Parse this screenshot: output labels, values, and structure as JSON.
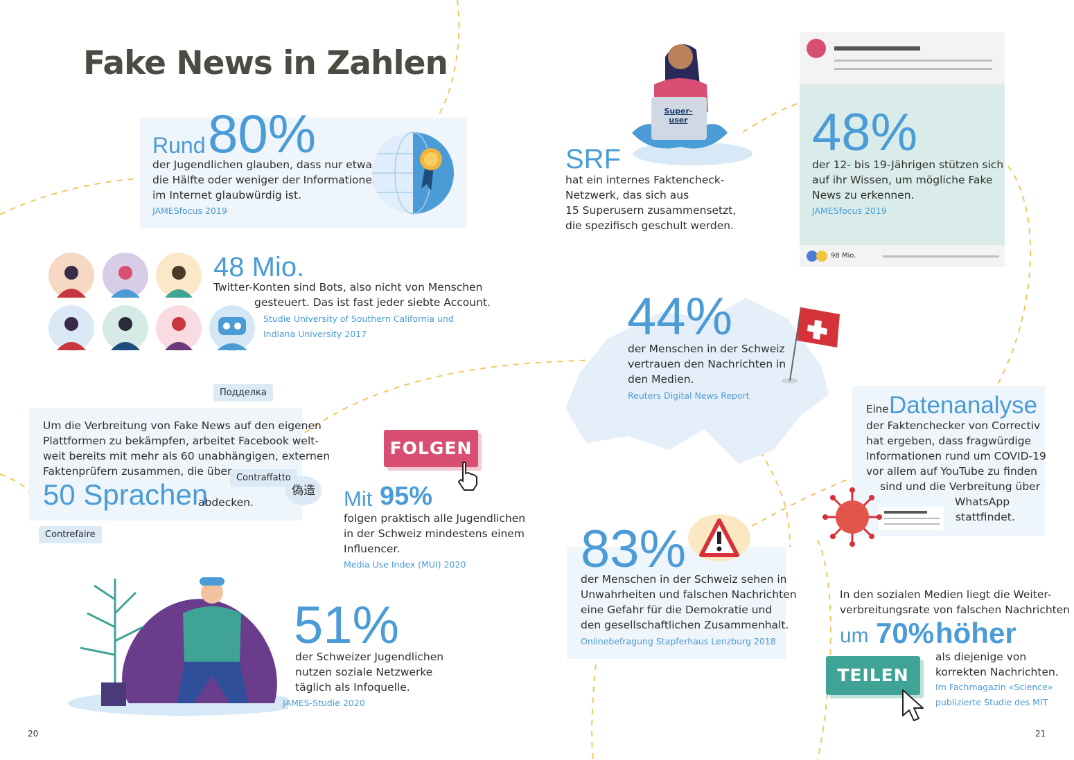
{
  "title": "Fake News in Zahlen",
  "page_left": "20",
  "page_right": "21",
  "colors": {
    "accent_blue": "#4a9bd6",
    "box_blue": "#eef5fb",
    "mint": "#d9ece9",
    "pink": "#d94f73",
    "teal": "#3fa496",
    "dash": "#f0c75a"
  },
  "s80": {
    "prefix": "Rund",
    "value": "80%",
    "text": [
      "der Jugendlichen glauben, dass nur etwa",
      "die Hälfte oder weniger der Informationen",
      "im Internet glaubwürdig ist."
    ],
    "source": "JAMESfocus 2019"
  },
  "bots": {
    "value": "48 Mio.",
    "text": [
      "Twitter-Konten sind Bots, also nicht von Menschen",
      "gesteuert. Das ist fast jeder siebte Account."
    ],
    "source": [
      "Studie University of Southern California und",
      "Indiana University 2017"
    ]
  },
  "facebook": {
    "text": [
      "Um die Verbreitung von Fake News auf den eigenen",
      "Plattformen zu bekämpfen, arbeitet Facebook welt-",
      "weit bereits mit mehr als 60 unabhängigen, externen",
      "Faktenprüfern zusammen, die über"
    ],
    "value": "50 Sprachen",
    "suffix": "abdecken.",
    "labels": [
      "Подделка",
      "Contraffatto",
      "偽造",
      "Contrefaire"
    ]
  },
  "s95": {
    "button": "FOLGEN",
    "prefix": "Mit",
    "value": "95%",
    "text": [
      "folgen praktisch alle Jugendlichen",
      "in der Schweiz mindestens einem",
      "Influencer."
    ],
    "source": "Media Use Index (MUI) 2020"
  },
  "s51": {
    "value": "51%",
    "text": [
      "der Schweizer Jugendlichen",
      "nutzen soziale Netzwerke",
      "täglich als Infoquelle."
    ],
    "source": "JAMES-Studie 2020"
  },
  "srf": {
    "laptop_label": [
      "Super-",
      "user"
    ],
    "value": "SRF",
    "text": [
      "hat ein internes Faktencheck-",
      "Netzwerk, das sich aus",
      "15 Superusern zusammensetzt,",
      "die spezifisch geschult werden."
    ]
  },
  "s48p": {
    "value": "48%",
    "text": [
      "der 12- bis 19-Jährigen stützen sich",
      "auf ihr Wissen, um mögliche Fake",
      "News zu erkennen."
    ],
    "source": "JAMESfocus 2019",
    "reactions": "98 Mio."
  },
  "s44": {
    "value": "44%",
    "text": [
      "der Menschen in der Schweiz",
      "vertrauen den Nachrichten in",
      "den Medien."
    ],
    "source": "Reuters Digital News Report"
  },
  "data": {
    "prefix": "Eine",
    "value": "Datenanalyse",
    "text": [
      "der Faktenchecker von Correctiv",
      "hat ergeben, dass fragwürdige",
      "Informationen rund um COVID-19",
      "vor allem auf YouTube zu finden",
      "sind und die Verbreitung über",
      "WhatsApp",
      "stattfindet."
    ]
  },
  "s83": {
    "value": "83%",
    "text": [
      "der Menschen in der Schweiz sehen in",
      "Unwahrheiten und falschen Nachrichten",
      "eine Gefahr für die Demokratie und",
      "den gesellschaftlichen Zusammenhalt."
    ],
    "source": "Onlinebefragung Stapferhaus Lenzburg 2018"
  },
  "s70": {
    "intro": [
      "In den sozialen Medien liegt die Weiter-",
      "verbreitungsrate von falschen Nachrichten"
    ],
    "prefix": "um",
    "value": "70%",
    "suffix": "höher",
    "text": [
      "als diejenige von",
      "korrekten Nachrichten."
    ],
    "source": [
      "Im Fachmagazin «Science»",
      "publizierte Studie des MIT"
    ],
    "button": "TEILEN"
  }
}
